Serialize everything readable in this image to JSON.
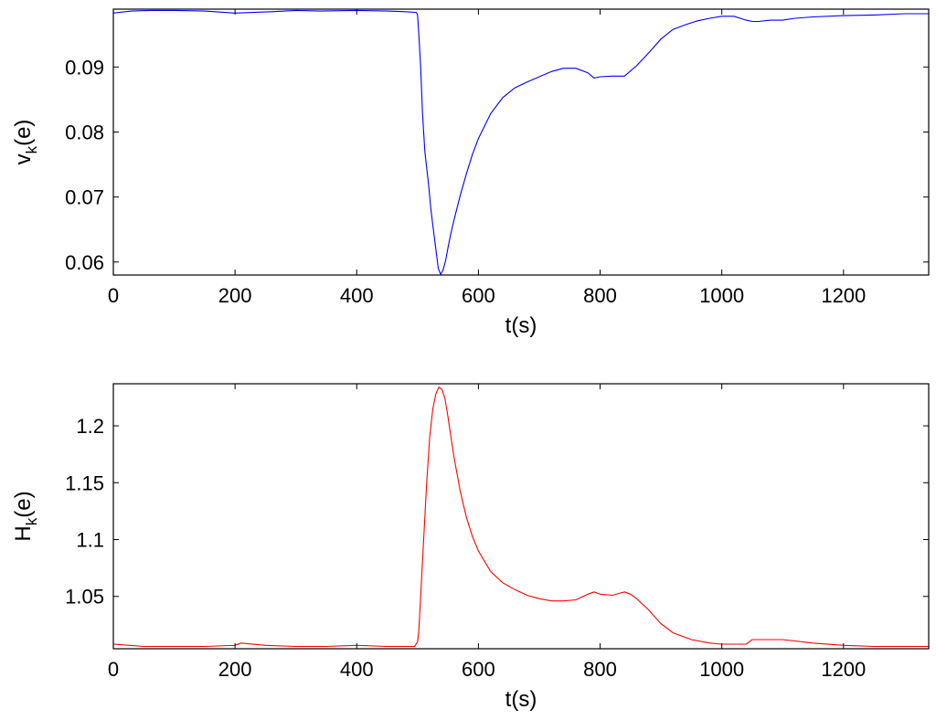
{
  "chart_data": [
    {
      "type": "line",
      "xlabel": "t(s)",
      "ylabel_main": "v",
      "ylabel_sub": "k",
      "ylabel_tail": "(e)",
      "xlim": [
        0,
        1340
      ],
      "ylim": [
        0.058,
        0.0989
      ],
      "xticks": [
        0,
        200,
        400,
        600,
        800,
        1000,
        1200
      ],
      "xtick_labels": [
        "0",
        "200",
        "400",
        "600",
        "800",
        "1000",
        "1200"
      ],
      "yticks": [
        0.06,
        0.07,
        0.08,
        0.09
      ],
      "ytick_labels": [
        "0.06",
        "0.07",
        "0.08",
        "0.09"
      ],
      "grid": false,
      "color": "#0000ff",
      "series": [
        {
          "x": [
            0,
            30,
            60,
            100,
            150,
            200,
            260,
            300,
            340,
            400,
            450,
            480,
            498,
            500,
            502,
            505,
            508,
            512,
            518,
            522,
            526,
            530,
            534,
            538,
            542,
            546,
            550,
            555,
            560,
            570,
            580,
            590,
            600,
            620,
            640,
            660,
            680,
            700,
            720,
            740,
            760,
            780,
            790,
            800,
            820,
            840,
            860,
            880,
            900,
            920,
            940,
            960,
            980,
            1000,
            1020,
            1040,
            1050,
            1060,
            1080,
            1100,
            1120,
            1150,
            1200,
            1250,
            1300,
            1340
          ],
          "y": [
            0.0983,
            0.0986,
            0.0987,
            0.0987,
            0.0986,
            0.0983,
            0.0985,
            0.0987,
            0.0986,
            0.0987,
            0.0986,
            0.0985,
            0.0984,
            0.098,
            0.095,
            0.09,
            0.083,
            0.077,
            0.072,
            0.068,
            0.065,
            0.062,
            0.059,
            0.0581,
            0.0588,
            0.0602,
            0.0622,
            0.0645,
            0.0665,
            0.0702,
            0.0735,
            0.0765,
            0.079,
            0.0828,
            0.0853,
            0.0868,
            0.0877,
            0.0885,
            0.0893,
            0.0898,
            0.0898,
            0.0891,
            0.0883,
            0.0885,
            0.0886,
            0.0886,
            0.0902,
            0.0922,
            0.0943,
            0.0958,
            0.0965,
            0.0971,
            0.0975,
            0.0978,
            0.0978,
            0.0972,
            0.097,
            0.097,
            0.0972,
            0.0972,
            0.0975,
            0.0977,
            0.0979,
            0.098,
            0.0982,
            0.0982
          ]
        }
      ]
    },
    {
      "type": "line",
      "xlabel": "t(s)",
      "ylabel_main": "H",
      "ylabel_sub": "k",
      "ylabel_tail": "(e)",
      "xlim": [
        0,
        1340
      ],
      "ylim": [
        1.004,
        1.237
      ],
      "xticks": [
        0,
        200,
        400,
        600,
        800,
        1000,
        1200
      ],
      "xtick_labels": [
        "0",
        "200",
        "400",
        "600",
        "800",
        "1000",
        "1200"
      ],
      "yticks": [
        1.05,
        1.1,
        1.15,
        1.2
      ],
      "ytick_labels": [
        "1.05",
        "1.1",
        "1.15",
        "1.2"
      ],
      "grid": false,
      "color": "#ff0000",
      "series": [
        {
          "x": [
            0,
            50,
            100,
            150,
            200,
            210,
            250,
            300,
            350,
            400,
            450,
            495,
            500,
            502,
            505,
            510,
            515,
            520,
            525,
            530,
            535,
            540,
            545,
            550,
            555,
            560,
            570,
            580,
            590,
            600,
            620,
            640,
            660,
            680,
            700,
            720,
            740,
            760,
            780,
            790,
            800,
            820,
            840,
            850,
            860,
            880,
            900,
            920,
            950,
            980,
            1000,
            1020,
            1040,
            1050,
            1100,
            1150,
            1200,
            1250,
            1300,
            1340
          ],
          "y": [
            1.008,
            1.006,
            1.006,
            1.006,
            1.007,
            1.009,
            1.007,
            1.006,
            1.006,
            1.007,
            1.006,
            1.006,
            1.01,
            1.02,
            1.05,
            1.1,
            1.15,
            1.19,
            1.215,
            1.228,
            1.234,
            1.232,
            1.224,
            1.208,
            1.19,
            1.172,
            1.143,
            1.12,
            1.103,
            1.09,
            1.072,
            1.062,
            1.056,
            1.051,
            1.048,
            1.046,
            1.046,
            1.047,
            1.052,
            1.054,
            1.052,
            1.051,
            1.054,
            1.052,
            1.048,
            1.038,
            1.026,
            1.018,
            1.012,
            1.009,
            1.008,
            1.008,
            1.008,
            1.012,
            1.012,
            1.009,
            1.007,
            1.006,
            1.006,
            1.006
          ]
        }
      ]
    }
  ]
}
